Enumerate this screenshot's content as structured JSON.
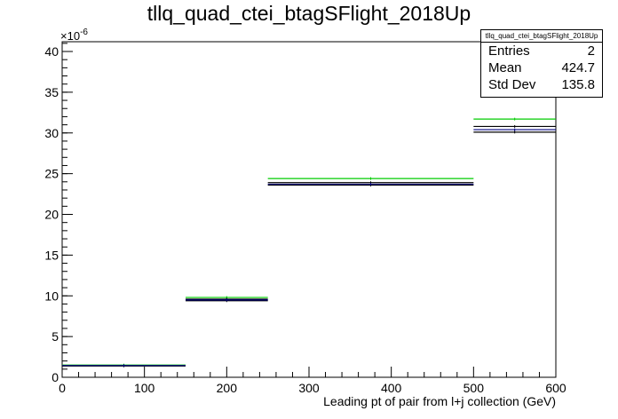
{
  "chart_data": {
    "type": "histogram",
    "title": "tllq_quad_ctei_btagSFlight_2018Up",
    "xlabel": "Leading pt of pair from l+j collection (GeV)",
    "ylabel": "",
    "y_exponent_label": "×10",
    "y_exponent_value": "-6",
    "xlim": [
      0,
      600
    ],
    "ylim": [
      0,
      41.2
    ],
    "x_ticks": [
      0,
      100,
      200,
      300,
      400,
      500,
      600
    ],
    "y_ticks": [
      0,
      5,
      10,
      15,
      20,
      25,
      30,
      35,
      40
    ],
    "bin_edges": [
      0,
      150,
      250,
      500,
      600
    ],
    "series": [
      {
        "color": "#00cc00",
        "values": [
          1.5,
          9.8,
          24.4,
          31.7
        ]
      },
      {
        "color": "#000000",
        "values": [
          1.4,
          9.6,
          23.9,
          30.8
        ]
      },
      {
        "color": "#000000",
        "values": [
          1.4,
          9.4,
          23.6,
          30.1
        ]
      },
      {
        "color": "#000080",
        "values": [
          1.45,
          9.5,
          23.7,
          30.4
        ]
      }
    ],
    "stats": {
      "name": "tllq_quad_ctei_btagSFlight_2018Up",
      "rows": [
        {
          "label": "Entries",
          "value": "2"
        },
        {
          "label": "Mean",
          "value": "424.7"
        },
        {
          "label": "Std Dev",
          "value": "135.8"
        }
      ]
    }
  }
}
